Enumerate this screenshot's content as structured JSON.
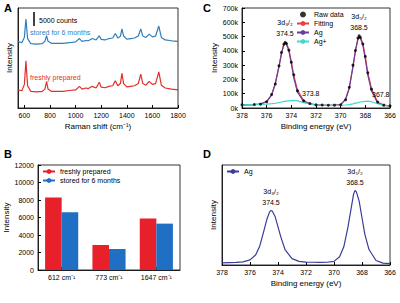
{
  "chart_data": [
    {
      "title": "A",
      "type": "line",
      "x": [
        550,
        580,
        600,
        612,
        625,
        650,
        700,
        740,
        760,
        773,
        785,
        810,
        850,
        900,
        950,
        1000,
        1030,
        1050,
        1080,
        1100,
        1130,
        1160,
        1185,
        1200,
        1230,
        1260,
        1290,
        1310,
        1330,
        1350,
        1362,
        1375,
        1400,
        1430,
        1460,
        1490,
        1509,
        1525,
        1550,
        1575,
        1600,
        1625,
        1650,
        1670,
        1700,
        1750,
        1800
      ],
      "series": [
        {
          "name": "stored for 6 months",
          "color": "#2f7fbf",
          "values": [
            24000,
            23500,
            25500,
            32000,
            25000,
            23200,
            23000,
            23200,
            24000,
            26000,
            24000,
            23300,
            23300,
            23300,
            23500,
            23800,
            25000,
            24000,
            24300,
            24200,
            25000,
            24500,
            26000,
            24700,
            24500,
            25000,
            25200,
            26800,
            25200,
            25800,
            28500,
            25900,
            24800,
            25000,
            25200,
            25900,
            28500,
            25900,
            25400,
            26600,
            25600,
            25900,
            29500,
            25400,
            24500,
            24200,
            24000
          ]
        },
        {
          "name": "freshly prepared",
          "color": "#e0302c",
          "values": [
            6500,
            6200,
            8500,
            17000,
            8000,
            6000,
            5800,
            6000,
            6800,
            9500,
            6800,
            6000,
            6000,
            6000,
            6300,
            6500,
            7800,
            6800,
            7200,
            7000,
            7800,
            7200,
            9300,
            7500,
            7300,
            7800,
            8000,
            9800,
            8000,
            8800,
            12500,
            8800,
            7600,
            7800,
            8000,
            8800,
            12200,
            8800,
            8200,
            9600,
            8500,
            8800,
            13000,
            8200,
            7200,
            6800,
            6500
          ]
        }
      ],
      "xlabel": "Raman shift (cm⁻¹)",
      "ylabel": "Intensity",
      "xlim": [
        550,
        1800
      ],
      "xticks": [
        600,
        800,
        1000,
        1200,
        1400,
        1600,
        1800
      ],
      "ylim": [
        0,
        36000
      ],
      "tick_labels": "x",
      "scale_bar": {
        "value": 5000,
        "label": "5000 counts"
      }
    },
    {
      "title": "B",
      "type": "bar",
      "categories": [
        "612 cm⁻¹",
        "773 cm⁻¹",
        "1647 cm⁻¹"
      ],
      "series": [
        {
          "name": "freshly prepared",
          "color": "#e8202a",
          "values": [
            8300,
            2850,
            5900
          ]
        },
        {
          "name": "stored for 6 months",
          "color": "#1f6fc5",
          "values": [
            6600,
            2400,
            5300
          ]
        }
      ],
      "ylabel": "Intensity",
      "ylim": [
        0,
        12000
      ],
      "yticks": [
        0,
        2000,
        4000,
        6000,
        8000,
        10000,
        12000
      ],
      "legend": "upper left"
    },
    {
      "title": "C",
      "type": "line",
      "x": [
        378,
        377,
        376.5,
        376,
        375.6,
        375.3,
        375,
        374.8,
        374.6,
        374.5,
        374.4,
        374.2,
        374,
        373.8,
        373.5,
        373,
        372.5,
        372,
        371.5,
        371,
        370.5,
        370,
        369.6,
        369.3,
        369,
        368.8,
        368.6,
        368.5,
        368.4,
        368.2,
        368,
        367.8,
        367.5,
        367,
        366.5,
        366
      ],
      "series": [
        {
          "name": "Raw data",
          "type": "scatter",
          "marker": "circle",
          "color": "#000000",
          "values": [
            23000,
            25000,
            27000,
            44000,
            95000,
            168000,
            295000,
            388000,
            447000,
            458000,
            452000,
            405000,
            320000,
            232000,
            120000,
            50000,
            31000,
            22000,
            21000,
            19000,
            20000,
            23000,
            58000,
            145000,
            300000,
            402000,
            490000,
            505000,
            494000,
            448000,
            360000,
            246000,
            132000,
            42000,
            20000,
            15000
          ]
        },
        {
          "name": "Fitting",
          "type": "line",
          "color": "#e8403a",
          "values": [
            22000,
            24000,
            28000,
            45000,
            92000,
            172000,
            293000,
            384000,
            450000,
            461000,
            455000,
            410000,
            325000,
            228000,
            125000,
            52000,
            30000,
            22000,
            20000,
            19000,
            19000,
            24000,
            61000,
            142000,
            294000,
            405000,
            487000,
            503000,
            497000,
            452000,
            358000,
            250000,
            135000,
            40000,
            20000,
            15000
          ]
        },
        {
          "name": "Ag",
          "type": "line",
          "color": "#6a3d9a",
          "values": [
            22000,
            24000,
            28000,
            45000,
            90000,
            170000,
            290000,
            380000,
            445000,
            455000,
            448000,
            400000,
            310000,
            210000,
            110000,
            45000,
            28000,
            22000,
            20000,
            19000,
            19000,
            24000,
            60000,
            140000,
            290000,
            400000,
            480000,
            495000,
            488000,
            440000,
            340000,
            230000,
            120000,
            35000,
            18000,
            15000
          ]
        },
        {
          "name": "Ag+",
          "type": "line",
          "color": "#40d8d0",
          "values": [
            22000,
            24000,
            25000,
            27000,
            30000,
            33000,
            38000,
            42000,
            46000,
            47000,
            48000,
            50000,
            52000,
            53000,
            50000,
            38000,
            28000,
            22000,
            20000,
            19000,
            19000,
            19000,
            21000,
            24000,
            29000,
            34000,
            38000,
            40000,
            42000,
            45000,
            47000,
            48000,
            44000,
            30000,
            18000,
            15000
          ]
        }
      ],
      "xlabel": "Binding energy (eV)",
      "ylabel": "Intensity",
      "xlim": [
        378,
        366
      ],
      "xticks": [
        378,
        376,
        374,
        372,
        370,
        368,
        366
      ],
      "ylim": [
        0,
        700000
      ],
      "yticks": [
        {
          "value": 0,
          "label": "0k"
        },
        {
          "value": 100000,
          "label": "100k"
        },
        {
          "value": 200000,
          "label": "200k"
        },
        {
          "value": 300000,
          "label": "300k"
        },
        {
          "value": 400000,
          "label": "400k"
        },
        {
          "value": 500000,
          "label": "500k"
        },
        {
          "value": 600000,
          "label": "600k"
        },
        {
          "value": 700000,
          "label": "700k"
        }
      ],
      "legend": "upper center",
      "annotations": [
        "3d₃/₂",
        "374.5",
        "373.8",
        "3d₅/₂",
        "368.5",
        "367.8"
      ]
    },
    {
      "title": "D",
      "type": "line",
      "x": [
        378,
        377,
        376.5,
        376,
        375.6,
        375.3,
        375,
        374.8,
        374.6,
        374.5,
        374.4,
        374.2,
        374,
        373.8,
        373.5,
        373,
        372.5,
        372,
        371.5,
        371,
        370.5,
        370,
        369.6,
        369.3,
        369,
        368.8,
        368.6,
        368.5,
        368.4,
        368.2,
        368,
        367.8,
        367.5,
        367,
        366.5,
        366
      ],
      "series": [
        {
          "name": "Ag",
          "color": "#3b3b9c",
          "values": [
            12,
            14,
            17,
            28,
            55,
            105,
            190,
            250,
            292,
            300,
            296,
            265,
            210,
            155,
            85,
            35,
            20,
            16,
            15,
            14,
            15,
            20,
            45,
            100,
            210,
            300,
            390,
            410,
            402,
            350,
            260,
            170,
            85,
            25,
            10,
            8
          ]
        }
      ],
      "xlabel": "Binding energy (eV)",
      "ylabel": "Intensity",
      "xlim": [
        378,
        366
      ],
      "xticks": [
        378,
        376,
        374,
        372,
        370,
        368,
        366
      ],
      "ylim": [
        0,
        550
      ],
      "tick_labels": "x",
      "legend": "upper left",
      "annotations": [
        "374.5",
        "3d₃/₂",
        "368.5",
        "3d₅/₂"
      ]
    }
  ]
}
